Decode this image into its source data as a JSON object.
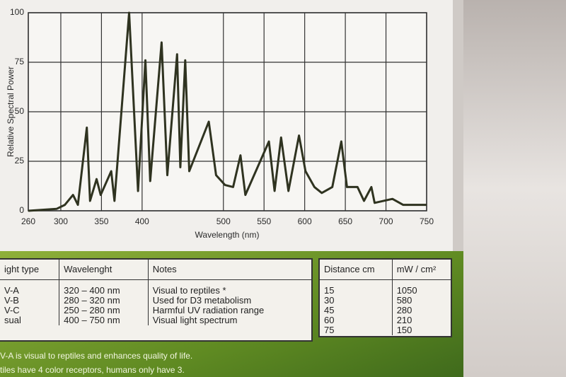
{
  "chart_data": {
    "type": "line",
    "ylabel": "Relative Spectral Power",
    "xlabel": "Wavelength (nm)",
    "x": [
      260,
      295,
      305,
      315,
      321,
      332,
      336,
      344,
      349,
      362,
      366,
      384,
      395,
      404,
      410,
      424,
      431,
      443,
      447,
      453,
      458,
      482,
      491,
      502,
      512,
      521,
      527,
      556,
      563,
      571,
      580,
      593,
      601,
      612,
      621,
      634,
      645,
      652,
      665,
      673,
      682,
      686,
      708,
      721,
      750
    ],
    "values": [
      0,
      1,
      3,
      8,
      3,
      42,
      5,
      16,
      8,
      20,
      5,
      100,
      10,
      76,
      15,
      85,
      18,
      79,
      22,
      76,
      20,
      45,
      18,
      13,
      12,
      28,
      8,
      35,
      10,
      37,
      10,
      38,
      20,
      12,
      9,
      12,
      35,
      12,
      12,
      5,
      12,
      4,
      6,
      3,
      3
    ],
    "color": "#2f3320",
    "xlim": [
      260,
      750
    ],
    "ylim": [
      0,
      100
    ],
    "xticks": [
      260,
      300,
      350,
      400,
      500,
      550,
      600,
      650,
      700,
      750
    ],
    "yticks": [
      0,
      25,
      50,
      75,
      100
    ],
    "grid": true
  },
  "types_table": {
    "header": [
      "ight type",
      "Wavelenght",
      "Notes"
    ],
    "rows": [
      [
        "V-A",
        "320 – 400 nm",
        "Visual to reptiles *"
      ],
      [
        "V-B",
        "280 – 320 nm",
        "Used for D3 metabolism"
      ],
      [
        "V-C",
        "250 – 280 nm",
        "Harmful UV radiation range"
      ],
      [
        "sual",
        "400 – 750 nm",
        "Visual light spectrum"
      ]
    ]
  },
  "distance_table": {
    "header": [
      "Distance cm",
      "mW / cm²"
    ],
    "rows": [
      [
        15,
        1050
      ],
      [
        30,
        580
      ],
      [
        45,
        280
      ],
      [
        60,
        210
      ],
      [
        75,
        150
      ]
    ]
  },
  "footnotes": [
    "V-A is visual to reptiles and enhances quality of life.",
    "tiles have 4 color receptors, humans only have 3."
  ]
}
